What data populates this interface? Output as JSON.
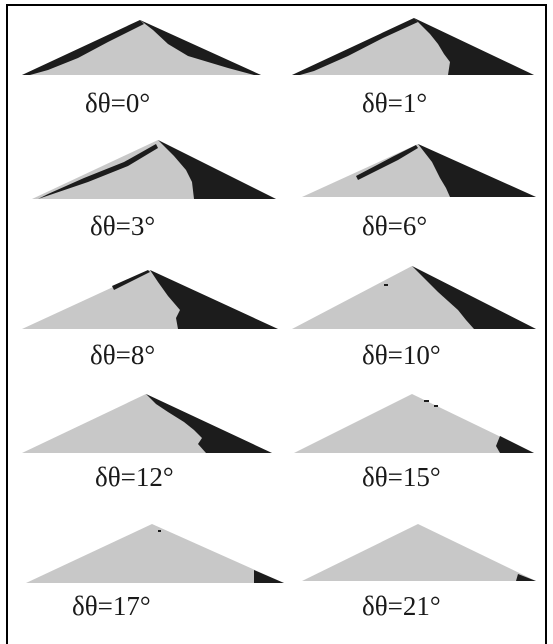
{
  "figure": {
    "panels": [
      {
        "label": "δθ=0°"
      },
      {
        "label": "δθ=1°"
      },
      {
        "label": "δθ=3°"
      },
      {
        "label": "δθ=6°"
      },
      {
        "label": "δθ=8°"
      },
      {
        "label": "δθ=10°"
      },
      {
        "label": "δθ=12°"
      },
      {
        "label": "δθ=15°"
      },
      {
        "label": "δθ=17°"
      },
      {
        "label": "δθ=21°"
      }
    ],
    "colors": {
      "light_region": "#c8c8c8",
      "dark_region": "#1c1c1c",
      "frame": "#000000"
    }
  }
}
